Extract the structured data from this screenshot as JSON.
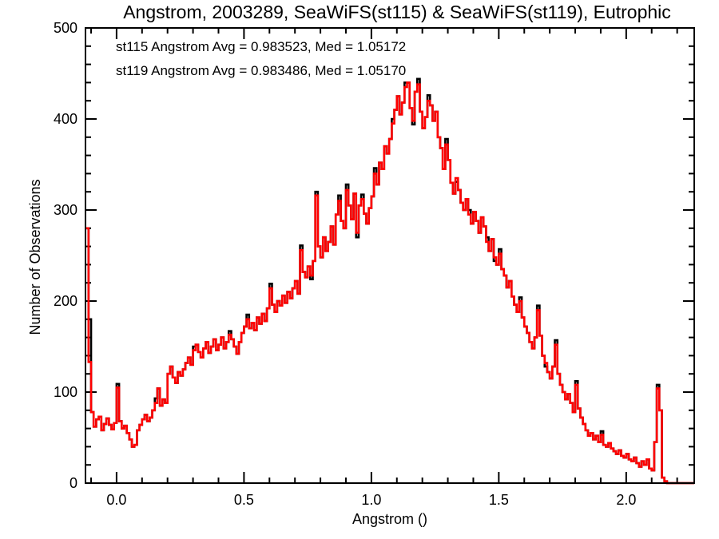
{
  "chart_data": {
    "type": "bar",
    "subtype": "step-histogram-overlay",
    "title": "Angstrom, 2003289, SeaWiFS(st115) & SeaWiFS(st119), Eutrophic",
    "xlabel": "Angstrom ()",
    "ylabel": "Number of Observations",
    "xlim": [
      -0.122,
      2.267
    ],
    "ylim": [
      0,
      500
    ],
    "grid": false,
    "legend_position": "top-left-inside",
    "x_ticks": {
      "major": [
        0.0,
        0.5,
        1.0,
        1.5,
        2.0
      ],
      "labels": [
        "0.0",
        "0.5",
        "1.0",
        "1.5",
        "2.0"
      ],
      "minor_step": 0.1
    },
    "y_ticks": {
      "major": [
        0,
        100,
        200,
        300,
        400,
        500
      ],
      "labels": [
        "0",
        "100",
        "200",
        "300",
        "400",
        "500"
      ],
      "minor_step": 20
    },
    "legend": [
      {
        "series": "st115",
        "label": "st115 Angstrom Avg = 0.983523, Med = 1.05172",
        "color": "#000000"
      },
      {
        "series": "st119",
        "label": "st119 Angstrom Avg = 0.983486, Med = 1.05170",
        "color": "#ff0000"
      }
    ],
    "bins": {
      "start": -0.12,
      "width": 0.01,
      "count": 240
    },
    "st119_values": [
      280,
      133,
      78,
      62,
      70,
      73,
      58,
      65,
      71,
      64,
      59,
      66,
      105,
      68,
      60,
      63,
      55,
      48,
      40,
      42,
      58,
      64,
      70,
      75,
      68,
      72,
      80,
      88,
      104,
      85,
      92,
      88,
      120,
      128,
      116,
      110,
      122,
      118,
      125,
      132,
      138,
      130,
      146,
      152,
      144,
      138,
      148,
      155,
      143,
      150,
      158,
      146,
      152,
      160,
      148,
      155,
      163,
      158,
      150,
      142,
      155,
      165,
      172,
      180,
      170,
      176,
      168,
      182,
      175,
      186,
      178,
      192,
      214,
      196,
      188,
      200,
      195,
      206,
      198,
      210,
      203,
      214,
      222,
      208,
      256,
      232,
      226,
      238,
      228,
      244,
      316,
      260,
      248,
      270,
      255,
      265,
      282,
      262,
      295,
      310,
      288,
      280,
      322,
      305,
      290,
      318,
      275,
      305,
      312,
      296,
      285,
      302,
      315,
      340,
      328,
      352,
      345,
      370,
      362,
      378,
      395,
      410,
      425,
      405,
      418,
      435,
      440,
      412,
      398,
      430,
      438,
      408,
      390,
      402,
      420,
      415,
      398,
      408,
      380,
      368,
      345,
      372,
      355,
      330,
      318,
      335,
      322,
      308,
      300,
      312,
      295,
      285,
      298,
      288,
      275,
      292,
      282,
      265,
      255,
      268,
      248,
      240,
      252,
      235,
      228,
      215,
      222,
      205,
      196,
      188,
      200,
      182,
      172,
      165,
      155,
      148,
      160,
      190,
      162,
      140,
      132,
      122,
      115,
      128,
      152,
      120,
      108,
      100,
      92,
      98,
      88,
      78,
      108,
      82,
      72,
      65,
      58,
      52,
      55,
      48,
      52,
      45,
      53,
      42,
      40,
      44,
      38,
      35,
      32,
      36,
      30,
      28,
      32,
      26,
      24,
      28,
      22,
      18,
      24,
      20,
      26,
      16,
      14,
      45,
      104,
      80,
      6,
      2,
      0,
      0,
      0,
      0,
      0,
      0,
      0,
      0,
      0,
      0,
      0,
      0
    ],
    "st115_offsets": {
      "1": 47,
      "12": 4,
      "27": 5,
      "42": 4,
      "56": 4,
      "63": 5,
      "72": 5,
      "84": 5,
      "88": -4,
      "90": 4,
      "99": 6,
      "102": 6,
      "106": -5,
      "108": 5,
      "113": 6,
      "120": 5,
      "125": 5,
      "128": -4,
      "130": 6,
      "134": 6,
      "141": 6,
      "145": -4,
      "150": 5,
      "157": 5,
      "160": -4,
      "162": 5,
      "170": 4,
      "177": 5,
      "180": -4,
      "184": 5,
      "192": 4,
      "202": 4,
      "224": 4
    },
    "colors": {
      "st115": "#000000",
      "st119": "#ff0000",
      "axis": "#000000",
      "background": "#ffffff"
    }
  }
}
